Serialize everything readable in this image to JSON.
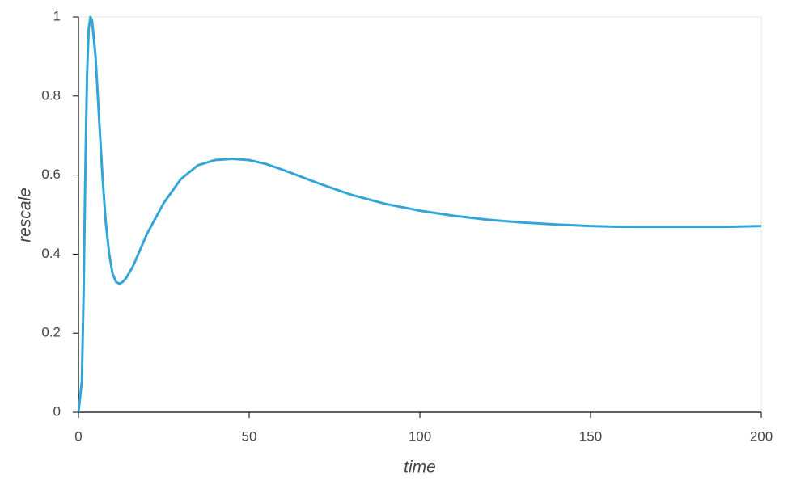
{
  "chart_data": {
    "type": "line",
    "x_label": "time",
    "y_label": "rescale",
    "series": [
      {
        "name": "rescale",
        "color": "#34a5d8",
        "x": [
          0,
          1,
          1.5,
          2,
          2.5,
          3,
          3.5,
          4,
          5,
          6,
          7,
          8,
          9,
          10,
          11,
          12,
          13,
          14,
          16,
          18,
          20,
          25,
          30,
          35,
          40,
          45,
          50,
          55,
          60,
          70,
          80,
          90,
          100,
          110,
          120,
          130,
          140,
          150,
          160,
          170,
          180,
          190,
          200
        ],
        "values": [
          0,
          0.08,
          0.3,
          0.6,
          0.85,
          0.97,
          1.0,
          0.99,
          0.9,
          0.75,
          0.6,
          0.48,
          0.4,
          0.35,
          0.33,
          0.325,
          0.33,
          0.34,
          0.37,
          0.41,
          0.45,
          0.53,
          0.59,
          0.625,
          0.638,
          0.641,
          0.638,
          0.628,
          0.613,
          0.58,
          0.55,
          0.527,
          0.51,
          0.497,
          0.487,
          0.48,
          0.475,
          0.471,
          0.469,
          0.469,
          0.469,
          0.469,
          0.471
        ]
      }
    ],
    "xlim": [
      0,
      200
    ],
    "xticks": [
      0,
      50,
      100,
      150,
      200
    ],
    "ylim": [
      0,
      1
    ],
    "yticks": [
      0,
      0.2,
      0.4,
      0.6,
      0.8,
      1
    ]
  }
}
